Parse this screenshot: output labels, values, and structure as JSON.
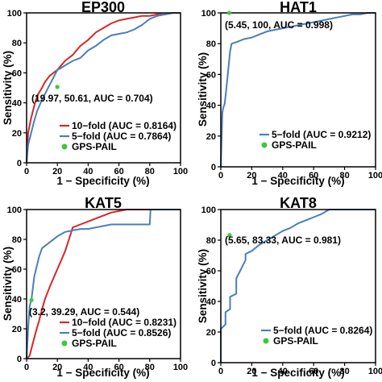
{
  "chart_data": [
    {
      "type": "line",
      "title": "EP300",
      "xlabel": "1 − Specificity (%)",
      "ylabel": "Sensitivity (%)",
      "xlim": [
        0,
        100
      ],
      "ylim": [
        0,
        100
      ],
      "xticks": [
        "0",
        "20",
        "40",
        "60",
        "80",
        "100"
      ],
      "yticks": [
        "0",
        "20",
        "40",
        "60",
        "80",
        "100"
      ],
      "grid": false,
      "legend_position": "bottom-right",
      "series": [
        {
          "name": "10−fold (AUC = 0.8164)",
          "color": "#d62728",
          "x": [
            0,
            1,
            2,
            3,
            5,
            7,
            10,
            12,
            15,
            20,
            25,
            30,
            35,
            40,
            45,
            50,
            55,
            60,
            65,
            70,
            75,
            80,
            85,
            90,
            95,
            100
          ],
          "y": [
            0,
            20,
            25,
            30,
            38,
            45,
            50,
            54,
            58,
            62,
            68,
            72,
            78,
            82,
            87,
            90,
            93,
            95,
            96,
            97,
            98,
            98,
            99,
            99,
            100,
            100
          ]
        },
        {
          "name": "5−fold (AUC = 0.7864)",
          "color": "#4a7fb8",
          "x": [
            0,
            1,
            3,
            5,
            7,
            10,
            15,
            20,
            22,
            25,
            30,
            35,
            40,
            45,
            50,
            55,
            60,
            65,
            70,
            75,
            80,
            85,
            90,
            95,
            100
          ],
          "y": [
            0,
            12,
            20,
            28,
            35,
            42,
            52,
            62,
            63,
            65,
            68,
            70,
            75,
            78,
            82,
            85,
            86,
            87,
            89,
            92,
            96,
            98,
            99,
            100,
            100
          ]
        }
      ],
      "gps_pail": {
        "label": "GPS-PAIL",
        "color": "#3cc83c",
        "x": 19.97,
        "y": 50.61,
        "annotation": "(19.97, 50.61, AUC = 0.704)"
      }
    },
    {
      "type": "line",
      "title": "HAT1",
      "xlabel": "1 − Specificity (%)",
      "ylabel": "Sensitivity (%)",
      "xlim": [
        0,
        100
      ],
      "ylim": [
        0,
        100
      ],
      "xticks": [
        "0",
        "20",
        "40",
        "60",
        "80",
        "100"
      ],
      "yticks": [
        "0",
        "20",
        "40",
        "60",
        "80",
        "100"
      ],
      "grid": false,
      "legend_position": "bottom-right",
      "series": [
        {
          "name": "5−fold (AUC = 0.9212)",
          "color": "#4a7fb8",
          "x": [
            0,
            1,
            1.5,
            2.5,
            3.5,
            5,
            6,
            7,
            10,
            15,
            20,
            25,
            30,
            35,
            40,
            45,
            50,
            55,
            60,
            65,
            70,
            75,
            80,
            85,
            90,
            95,
            100
          ],
          "y": [
            0,
            35,
            38,
            41,
            50,
            65,
            75,
            80,
            81,
            83,
            84,
            86,
            88,
            89,
            90,
            91,
            92,
            93,
            94,
            95,
            96,
            97,
            98,
            99,
            99,
            100,
            100
          ]
        }
      ],
      "gps_pail": {
        "label": "GPS-PAIL",
        "color": "#3cc83c",
        "x": 5.45,
        "y": 100,
        "annotation": "(5.45, 100, AUC = 0.998)"
      }
    },
    {
      "type": "line",
      "title": "KAT5",
      "xlabel": "1 − Specificity (%)",
      "ylabel": "Sensitivity (%)",
      "xlim": [
        0,
        100
      ],
      "ylim": [
        0,
        100
      ],
      "xticks": [
        "0",
        "20",
        "40",
        "60",
        "80",
        "100"
      ],
      "yticks": [
        "0",
        "20",
        "40",
        "60",
        "80",
        "100"
      ],
      "grid": false,
      "legend_position": "bottom-right",
      "series": [
        {
          "name": "10−fold (AUC = 0.8231)",
          "color": "#d62728",
          "x": [
            0,
            2,
            4,
            6,
            8,
            10,
            12,
            15,
            20,
            25,
            30,
            35,
            40,
            45,
            50,
            55,
            60,
            65,
            70,
            80,
            100
          ],
          "y": [
            0,
            2,
            10,
            18,
            25,
            33,
            40,
            48,
            60,
            72,
            88,
            90,
            92,
            94,
            96,
            98,
            99,
            100,
            100,
            100,
            100
          ]
        },
        {
          "name": "5−fold (AUC = 0.8526)",
          "color": "#4a7fb8",
          "x": [
            0,
            1,
            2,
            3,
            3.2,
            5,
            8,
            10,
            15,
            20,
            25,
            30,
            35,
            40,
            45,
            50,
            55,
            60,
            65,
            70,
            75,
            80,
            80.5,
            85,
            90,
            100
          ],
          "y": [
            0,
            20,
            35,
            39.29,
            40,
            55,
            68,
            74,
            78,
            82,
            85,
            86,
            87,
            87,
            88,
            89,
            90,
            90,
            90,
            90,
            90,
            90,
            100,
            100,
            100,
            100
          ]
        }
      ],
      "gps_pail": {
        "label": "GPS-PAIL",
        "color": "#3cc83c",
        "x": 3.2,
        "y": 39.29,
        "annotation": "(3.2, 39.29, AUC = 0.544)"
      }
    },
    {
      "type": "line",
      "title": "KAT8",
      "xlabel": "1 − Specificity (%)",
      "ylabel": "Sensitivity (%)",
      "xlim": [
        0,
        100
      ],
      "ylim": [
        0,
        100
      ],
      "xticks": [
        "0",
        "20",
        "40",
        "60",
        "80",
        "100"
      ],
      "yticks": [
        "0",
        "20",
        "40",
        "60",
        "80",
        "100"
      ],
      "grid": false,
      "legend_position": "bottom-right",
      "series": [
        {
          "name": "5−fold (AUC = 0.8264)",
          "color": "#4a7fb8",
          "x": [
            0,
            0,
            3,
            3,
            6,
            6,
            10,
            10,
            16,
            16,
            20,
            25,
            30,
            35,
            40,
            45,
            50,
            55,
            60,
            65,
            70,
            80,
            90,
            100
          ],
          "y": [
            0,
            22,
            25,
            33,
            35,
            43,
            45,
            55,
            67,
            71,
            73,
            77,
            80,
            83,
            86,
            88,
            91,
            93,
            95,
            97,
            100,
            100,
            100,
            100
          ]
        }
      ],
      "gps_pail": {
        "label": "GPS-PAIL",
        "color": "#3cc83c",
        "x": 5.65,
        "y": 83.33,
        "annotation": "(5.65, 83.33, AUC = 0.981)"
      }
    }
  ]
}
